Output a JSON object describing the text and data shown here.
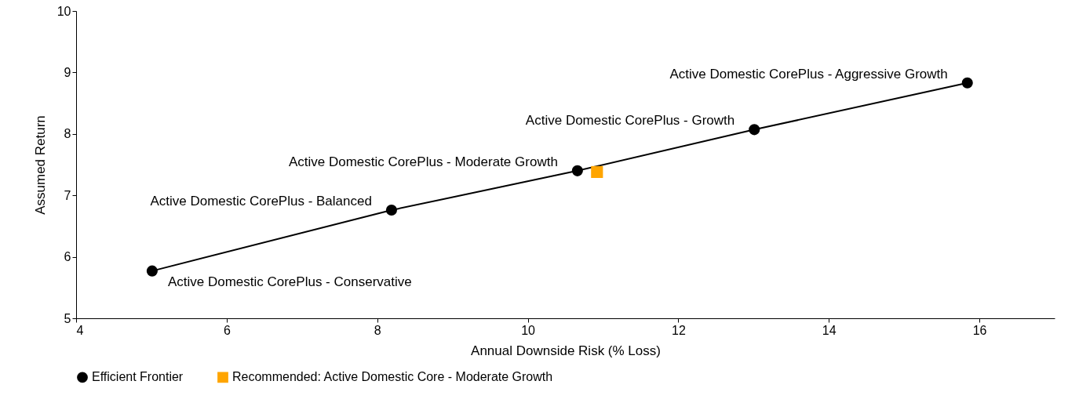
{
  "chart_data": {
    "type": "line",
    "xlabel": "Annual Downside Risk (% Loss)",
    "ylabel": "Assumed Return",
    "xlim": [
      4,
      17
    ],
    "xticks": [
      4,
      6,
      8,
      10,
      12,
      14,
      16
    ],
    "ylim": [
      5,
      10
    ],
    "yticks": [
      5,
      6,
      7,
      8,
      9,
      10
    ],
    "grid": false,
    "legend": "bottom",
    "marker": "circle",
    "line_style": "solid",
    "series": [
      {
        "name": "Efficient Frontier",
        "color": "#000000",
        "x": [
          5.01,
          8.19,
          10.66,
          13.01,
          15.84
        ],
        "values": [
          5.77,
          6.76,
          7.4,
          8.07,
          8.83
        ]
      },
      {
        "name": "Recommended: Active Domestic Core - Moderate Growth",
        "type": "scatter",
        "color": "#ffa500",
        "marker": "square",
        "x": [
          10.92
        ],
        "values": [
          7.38
        ]
      }
    ],
    "annotations": [
      {
        "text": "Active Domestic CorePlus - Conservative",
        "x": 5.01,
        "y": 5.77
      },
      {
        "text": "Active Domestic CorePlus - Balanced",
        "x": 8.19,
        "y": 6.76
      },
      {
        "text": "Active Domestic CorePlus - Moderate Growth",
        "x": 10.66,
        "y": 7.4
      },
      {
        "text": "Active Domestic CorePlus - Growth",
        "x": 13.01,
        "y": 8.07
      },
      {
        "text": "Active Domestic CorePlus - Aggressive Growth",
        "x": 15.84,
        "y": 8.83
      }
    ]
  }
}
